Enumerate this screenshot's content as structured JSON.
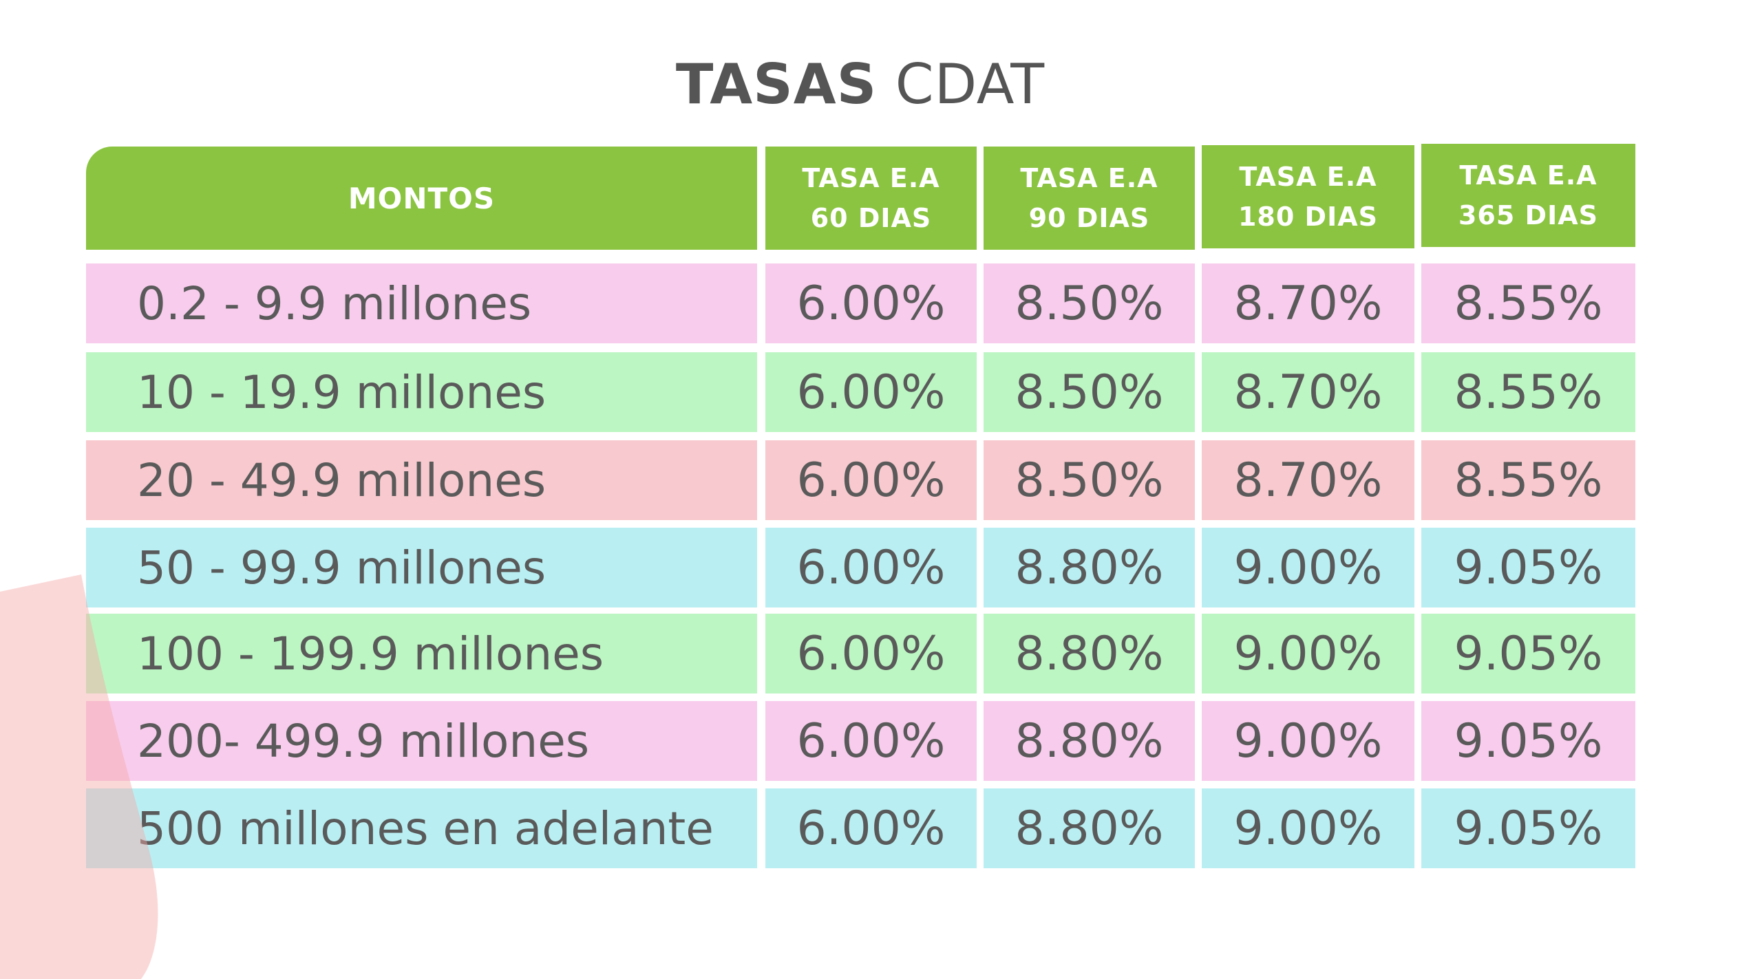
{
  "title": {
    "bold": "TASAS",
    "light": "CDAT"
  },
  "colors": {
    "header": "#8bc441",
    "pink": "#f8ccec",
    "green": "#bcf6c3",
    "rose": "#f8c9ce",
    "cyan": "#b9eff3",
    "text": "#5a5a5a"
  },
  "table": {
    "headers": [
      {
        "line1": "MONTOS",
        "line2": ""
      },
      {
        "line1": "TASA E.A",
        "line2": "60 DIAS"
      },
      {
        "line1": "TASA E.A",
        "line2": "90 DIAS"
      },
      {
        "line1": "TASA E.A",
        "line2": "180 DIAS"
      },
      {
        "line1": "TASA E.A",
        "line2": "365 DIAS"
      }
    ],
    "rows": [
      {
        "color": "pink",
        "cells": [
          "0.2 - 9.9 millones",
          "6.00%",
          "8.50%",
          "8.70%",
          "8.55%"
        ]
      },
      {
        "color": "green",
        "cells": [
          "10 - 19.9 millones",
          "6.00%",
          "8.50%",
          "8.70%",
          "8.55%"
        ]
      },
      {
        "color": "rose",
        "cells": [
          "20 - 49.9 millones",
          "6.00%",
          "8.50%",
          "8.70%",
          "8.55%"
        ]
      },
      {
        "color": "cyan",
        "cells": [
          "50 - 99.9 millones",
          "6.00%",
          "8.80%",
          "9.00%",
          "9.05%"
        ]
      },
      {
        "color": "green",
        "cells": [
          "100 - 199.9 millones",
          "6.00%",
          "8.80%",
          "9.00%",
          "9.05%"
        ]
      },
      {
        "color": "pink",
        "cells": [
          "200- 499.9 millones",
          "6.00%",
          "8.80%",
          "9.00%",
          "9.05%"
        ]
      },
      {
        "color": "cyan",
        "cells": [
          "500 millones en adelante",
          "6.00%",
          "8.80%",
          "9.00%",
          "9.05%"
        ]
      }
    ]
  }
}
